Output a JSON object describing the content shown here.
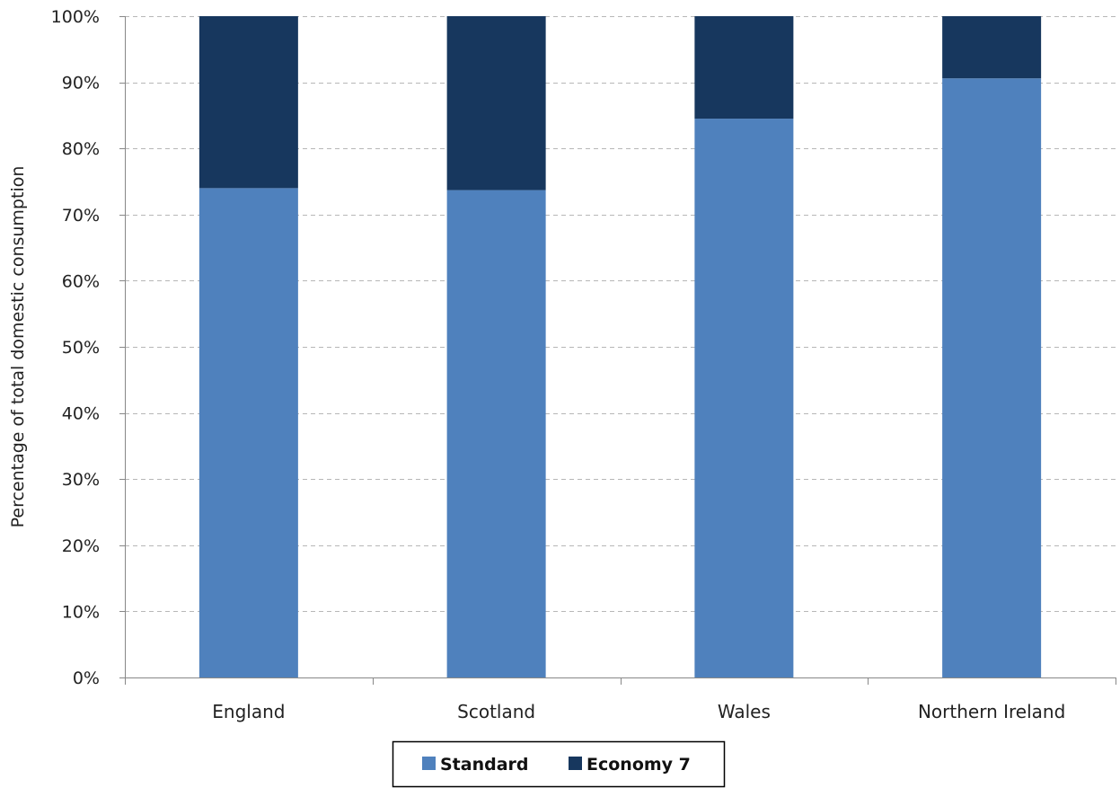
{
  "chart_data": {
    "type": "bar",
    "stacked": true,
    "categories": [
      "England",
      "Scotland",
      "Wales",
      "Northern Ireland"
    ],
    "series": [
      {
        "name": "Standard",
        "values": [
          74,
          73.7,
          84.5,
          90.6
        ],
        "color": "#4f81bd"
      },
      {
        "name": "Economy 7",
        "values": [
          26,
          26.3,
          15.5,
          9.4
        ],
        "color": "#17375e"
      }
    ],
    "title": "",
    "xlabel": "",
    "ylabel": "Percentage of total domestic consumption",
    "ylim": [
      0,
      100
    ],
    "yticks": [
      "0%",
      "10%",
      "20%",
      "30%",
      "40%",
      "50%",
      "60%",
      "70%",
      "80%",
      "90%",
      "100%"
    ],
    "grid": true,
    "legend_position": "bottom"
  }
}
